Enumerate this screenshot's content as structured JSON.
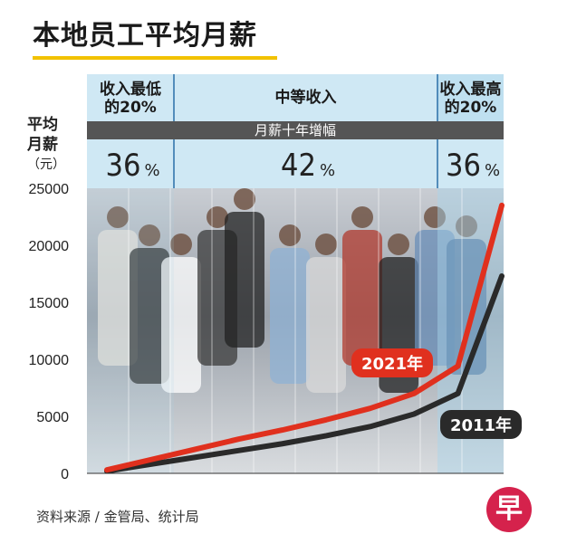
{
  "title": "本地员工平均月薪",
  "source": "资料来源 / 金管局、统计局",
  "logo_text": "早",
  "colors": {
    "line_2021": "#e0301e",
    "line_2011": "#2a2a2a",
    "band_bg": "#cfe8f4",
    "accent_bar": "#f2c200",
    "subhead_bar": "#555555"
  },
  "chart_data": {
    "type": "line",
    "ylabel": [
      "平均",
      "月薪",
      "（元）"
    ],
    "ylim": [
      0,
      25000
    ],
    "yticks": [
      0,
      5000,
      10000,
      15000,
      20000,
      25000
    ],
    "grid": true,
    "x": [
      1,
      2,
      3,
      4,
      5,
      6,
      7,
      8,
      9,
      10
    ],
    "series": [
      {
        "name": "2021年",
        "values": [
          300,
          1200,
          2100,
          3000,
          3800,
          4700,
          5700,
          7000,
          9400,
          23500
        ]
      },
      {
        "name": "2011年",
        "values": [
          200,
          800,
          1400,
          2000,
          2600,
          3300,
          4100,
          5200,
          7000,
          17300
        ]
      }
    ],
    "bands": [
      {
        "label": [
          "收入最低",
          "的20%"
        ],
        "growth": "36",
        "unit": "%"
      },
      {
        "label": [
          "中等收入"
        ],
        "growth": "42",
        "unit": "%"
      },
      {
        "label": [
          "收入最高",
          "的20%"
        ],
        "growth": "36",
        "unit": "%"
      }
    ],
    "subheading": "月薪十年增幅"
  }
}
